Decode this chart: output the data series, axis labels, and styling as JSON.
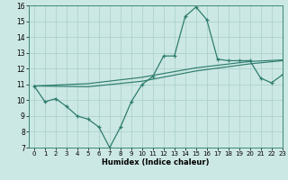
{
  "xlabel": "Humidex (Indice chaleur)",
  "background_color": "#cce8e4",
  "grid_color": "#a8ceca",
  "line_color": "#2e7d6e",
  "xlim": [
    -0.5,
    23
  ],
  "ylim": [
    7,
    16
  ],
  "xticks": [
    0,
    1,
    2,
    3,
    4,
    5,
    6,
    7,
    8,
    9,
    10,
    11,
    12,
    13,
    14,
    15,
    16,
    17,
    18,
    19,
    20,
    21,
    22,
    23
  ],
  "yticks": [
    7,
    8,
    9,
    10,
    11,
    12,
    13,
    14,
    15,
    16
  ],
  "line1_x": [
    0,
    1,
    2,
    3,
    4,
    5,
    6,
    7,
    8,
    9,
    10,
    11,
    12,
    13,
    14,
    15,
    16,
    17,
    18,
    19,
    20,
    21,
    22,
    23
  ],
  "line1_y": [
    10.9,
    9.9,
    10.1,
    9.6,
    9.0,
    8.8,
    8.3,
    7.0,
    8.3,
    9.9,
    11.0,
    11.5,
    12.8,
    12.8,
    15.3,
    15.9,
    15.1,
    12.6,
    12.5,
    12.5,
    12.5,
    11.4,
    11.1,
    11.6
  ],
  "line2_x": [
    0,
    5,
    10,
    15,
    20,
    23
  ],
  "line2_y": [
    10.9,
    10.85,
    11.2,
    11.85,
    12.3,
    12.5
  ],
  "line3_x": [
    0,
    5,
    10,
    15,
    20,
    23
  ],
  "line3_y": [
    10.9,
    11.05,
    11.45,
    12.05,
    12.45,
    12.55
  ]
}
